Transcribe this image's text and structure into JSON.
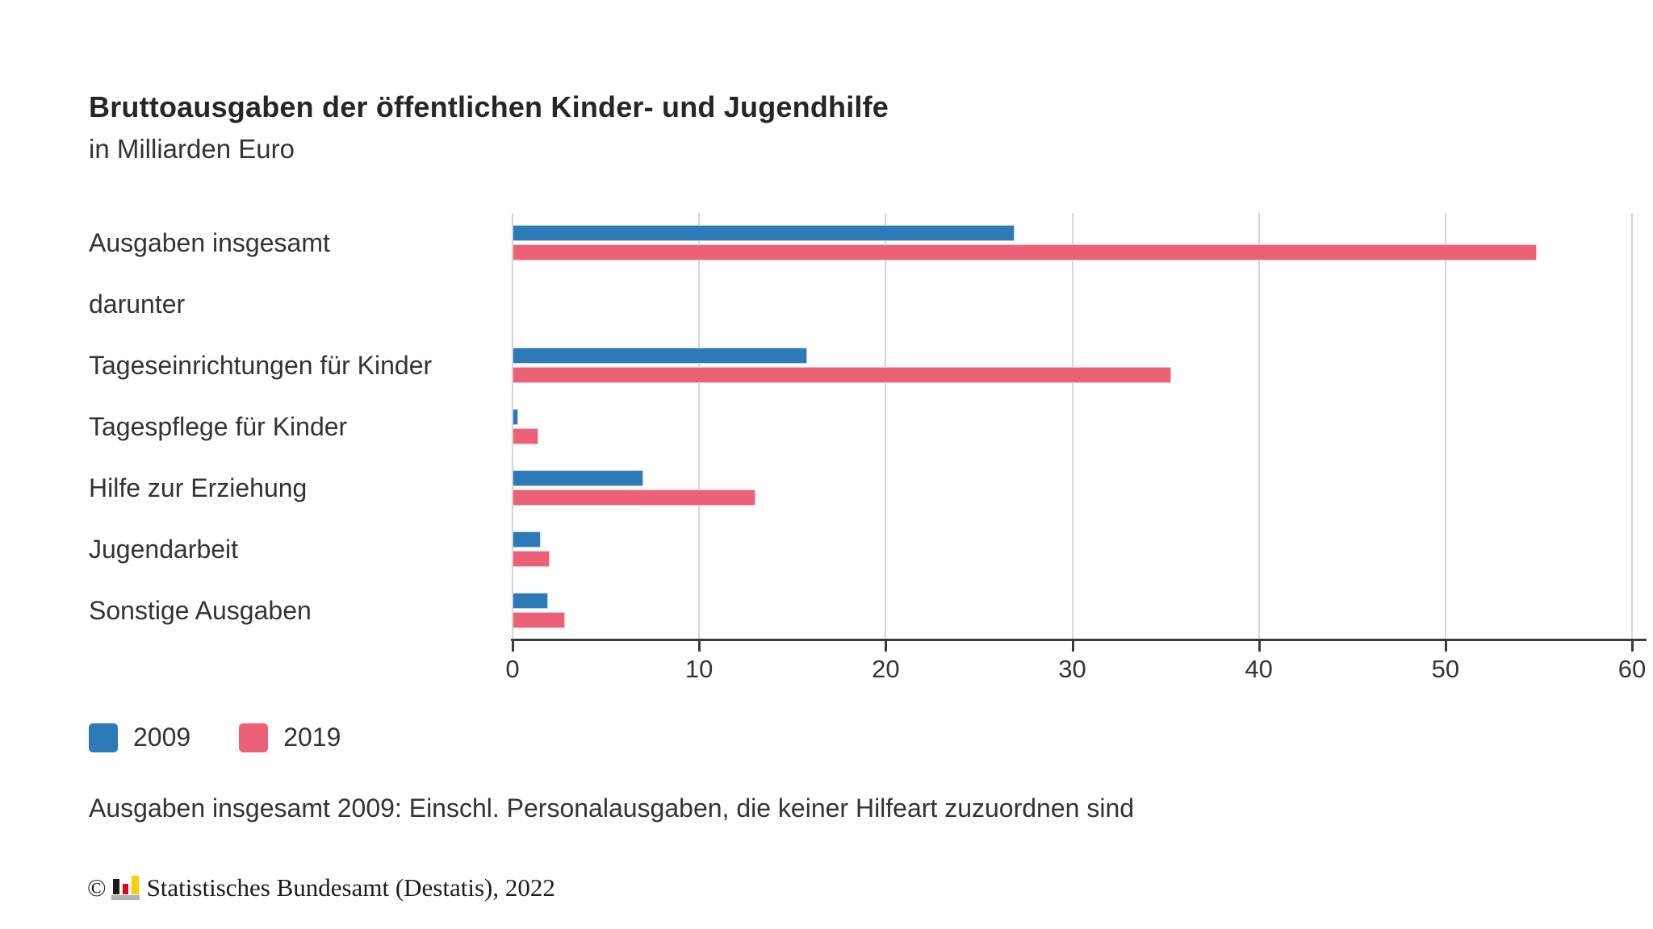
{
  "header": {
    "title": "Bruttoausgaben der öffentlichen Kinder- und Jugendhilfe",
    "subtitle": "in Milliarden Euro"
  },
  "chart_data": {
    "type": "bar",
    "orientation": "horizontal",
    "title": "Bruttoausgaben der öffentlichen Kinder- und Jugendhilfe",
    "subtitle": "in Milliarden Euro",
    "categories": [
      "Ausgaben insgesamt",
      "darunter",
      "Tageseinrichtungen für Kinder",
      "Tagespflege für Kinder",
      "Hilfe zur Erziehung",
      "Jugendarbeit",
      "Sonstige Ausgaben"
    ],
    "series": [
      {
        "name": "2009",
        "color": "#2c7ab8",
        "values": [
          26.9,
          null,
          15.8,
          0.3,
          7.0,
          1.5,
          1.9
        ]
      },
      {
        "name": "2019",
        "color": "#ec6176",
        "values": [
          54.9,
          null,
          35.3,
          1.4,
          13.0,
          2.0,
          2.8
        ]
      }
    ],
    "xlim": [
      0,
      60
    ],
    "x_ticks": [
      0,
      10,
      20,
      30,
      40,
      50,
      60
    ],
    "grid": "vertical",
    "legend_position": "bottom-left"
  },
  "footnote": {
    "text": "Ausgaben insgesamt 2009: Einschl. Personalausgaben, die keiner Hilfeart zuzuordnen sind"
  },
  "copyright": {
    "symbol": "©",
    "text": "Statistisches Bundesamt (Destatis), 2022",
    "logo": "destatis-bar-chart-logo",
    "logo_colors": {
      "black": "#1a1a1a",
      "red": "#e2001a",
      "gold": "#ffcc00",
      "base_gray": "#b2b2b2"
    }
  }
}
